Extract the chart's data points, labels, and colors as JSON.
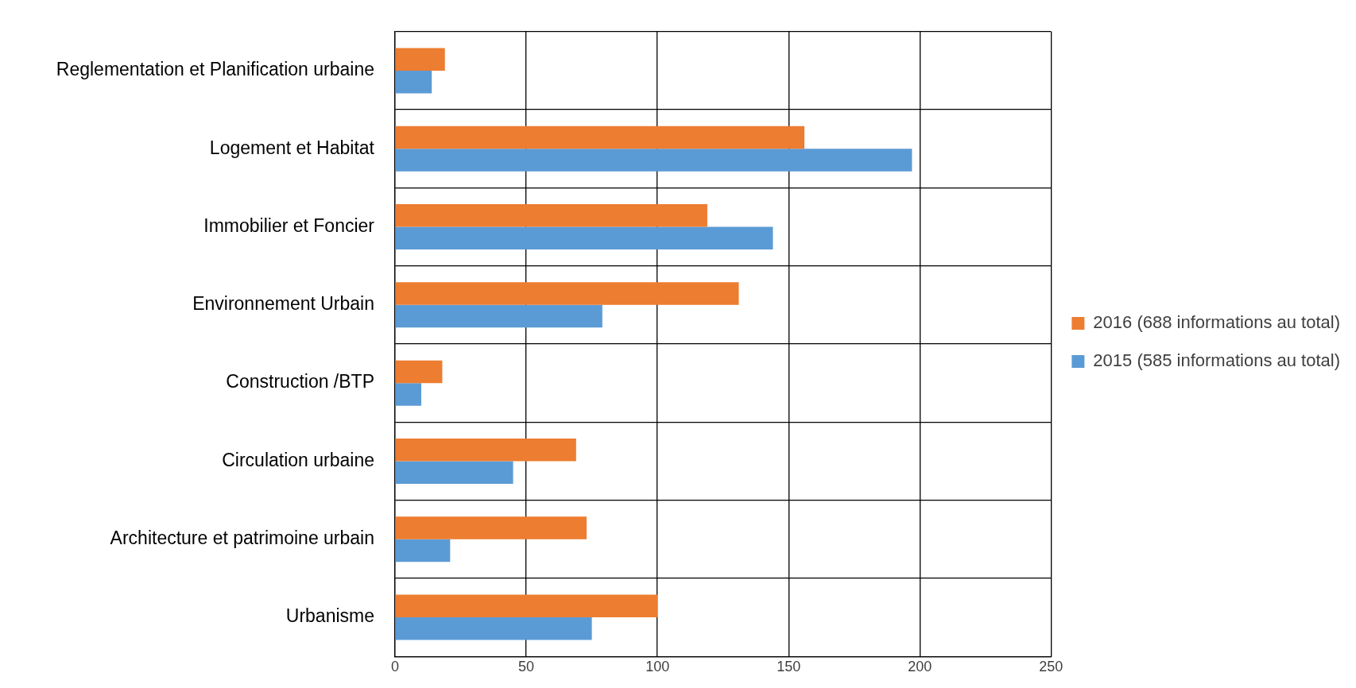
{
  "chart_data": {
    "type": "bar",
    "orientation": "horizontal",
    "categories": [
      "Reglementation et Planification urbaine",
      "Logement et Habitat",
      "Immobilier et Foncier",
      "Environnement Urbain",
      "Construction /BTP",
      "Circulation urbaine",
      "Architecture et patrimoine urbain",
      "Urbanisme"
    ],
    "series": [
      {
        "name": "2016 (688 informations au total)",
        "color": "#ed7d31",
        "values": [
          19,
          156,
          119,
          131,
          18,
          69,
          73,
          100
        ]
      },
      {
        "name": "2015 (585 informations au total)",
        "color": "#5b9bd5",
        "values": [
          14,
          197,
          144,
          79,
          10,
          45,
          21,
          75
        ]
      }
    ],
    "xlim": [
      0,
      250
    ],
    "xticks": [
      0,
      50,
      100,
      150,
      200,
      250
    ],
    "grid": true,
    "legend": "right"
  }
}
